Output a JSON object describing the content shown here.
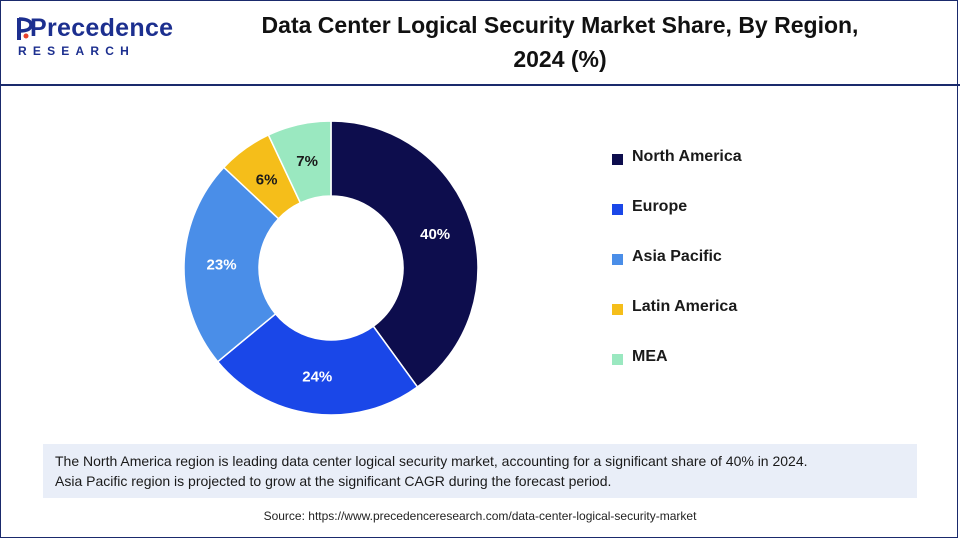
{
  "header": {
    "logo_word": "Precedence",
    "logo_sub": "RESEARCH",
    "title_line1": "Data Center Logical Security Market Share, By Region,",
    "title_line2": "2024 (%)"
  },
  "chart_data": {
    "type": "pie",
    "donut": true,
    "categories": [
      "North America",
      "Europe",
      "Asia Pacific",
      "Latin America",
      "MEA"
    ],
    "values": [
      40,
      24,
      23,
      6,
      7
    ],
    "labels": [
      "40%",
      "24%",
      "23%",
      "6%",
      "7%"
    ],
    "colors": [
      "#0d0d4d",
      "#1a47e8",
      "#4a8ee8",
      "#f5be1a",
      "#9ae8c0"
    ],
    "label_colors": [
      "#ffffff",
      "#ffffff",
      "#ffffff",
      "#1a1a1a",
      "#1a1a1a"
    ],
    "legend_placement": "right"
  },
  "note": {
    "line1": "The North America region is leading data center logical security market, accounting for a significant share of 40% in 2024.",
    "line2": "Asia Pacific region is projected to grow at the significant CAGR during the forecast period."
  },
  "source": "Source: https://www.precedenceresearch.com/data-center-logical-security-market"
}
